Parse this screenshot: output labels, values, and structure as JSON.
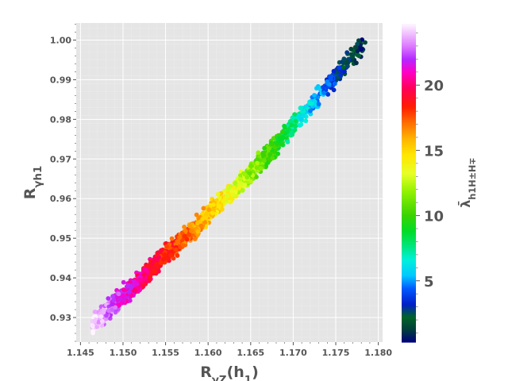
{
  "chart_data": {
    "type": "scatter",
    "title": "",
    "xlabel": "R_{γZ}(h_1)",
    "ylabel": "R_{γh_1}",
    "colorbar_label": "λ̄_{h_1H±H∓}",
    "xlim": [
      1.1445,
      1.1805
    ],
    "ylim": [
      0.9238,
      1.0043
    ],
    "x_ticks": [
      "1.145",
      "1.150",
      "1.155",
      "1.160",
      "1.165",
      "1.170",
      "1.175",
      "1.180"
    ],
    "y_ticks": [
      "0.93",
      "0.94",
      "0.95",
      "0.96",
      "0.97",
      "0.98",
      "0.99",
      "1.00"
    ],
    "colorbar_range": [
      0.3,
      24.7
    ],
    "colorbar_ticks": [
      "5",
      "10",
      "15",
      "20"
    ],
    "grid": true,
    "background": "#e5e5e5",
    "colormap": "gist_ncar",
    "series_summary": {
      "trend": "positive linear band",
      "x": [
        1.1464,
        1.1495,
        1.1525,
        1.155,
        1.158,
        1.1605,
        1.163,
        1.1655,
        1.168,
        1.1705,
        1.173,
        1.1755,
        1.1785
      ],
      "y": [
        0.928,
        0.9345,
        0.9405,
        0.946,
        0.9515,
        0.957,
        0.962,
        0.9675,
        0.9735,
        0.9795,
        0.986,
        0.992,
        0.9995
      ],
      "color_value": [
        24.5,
        22.0,
        20.0,
        18.5,
        17.0,
        15.0,
        13.5,
        11.5,
        9.5,
        7.0,
        5.0,
        3.0,
        0.8
      ]
    }
  }
}
